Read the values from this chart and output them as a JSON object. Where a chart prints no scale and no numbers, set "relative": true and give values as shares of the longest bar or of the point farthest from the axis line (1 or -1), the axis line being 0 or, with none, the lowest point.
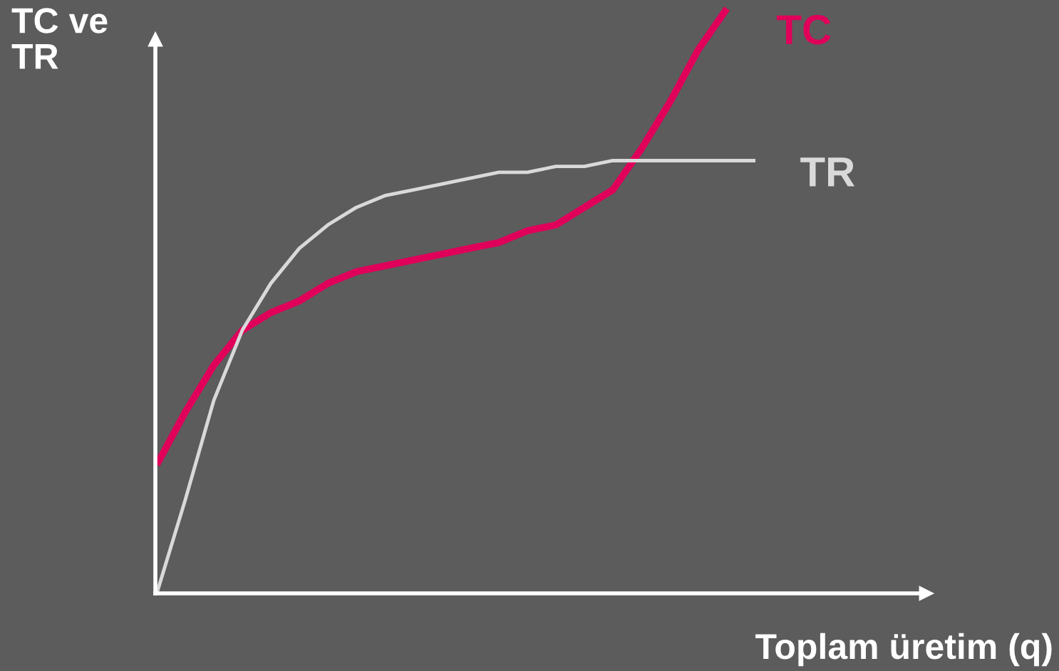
{
  "chart_data": {
    "type": "line",
    "relative": true,
    "xlabel": "Toplam üretim (q)",
    "ylabel": "TC ve\nTR",
    "categories": [
      null,
      null,
      null,
      null,
      null,
      null,
      null,
      null,
      null,
      null,
      null,
      null,
      null,
      null,
      null,
      null,
      null,
      null,
      null,
      null,
      null,
      null
    ],
    "series": [
      {
        "name": "TC",
        "color": "#e0005a",
        "values": [
          0.22,
          0.31,
          0.39,
          0.45,
          0.48,
          0.5,
          0.53,
          0.55,
          0.56,
          0.57,
          0.58,
          0.59,
          0.6,
          0.62,
          0.63,
          0.66,
          0.69,
          0.76,
          0.84,
          0.93,
          1.0,
          null
        ]
      },
      {
        "name": "TR",
        "color": "#d9d9d9",
        "values": [
          0.0,
          0.16,
          0.33,
          0.45,
          0.53,
          0.59,
          0.63,
          0.66,
          0.68,
          0.69,
          0.7,
          0.71,
          0.72,
          0.72,
          0.73,
          0.73,
          0.74,
          0.74,
          0.74,
          0.74,
          0.74,
          0.74
        ]
      }
    ],
    "legend": false,
    "marker": "none",
    "line_style": "solid"
  }
}
